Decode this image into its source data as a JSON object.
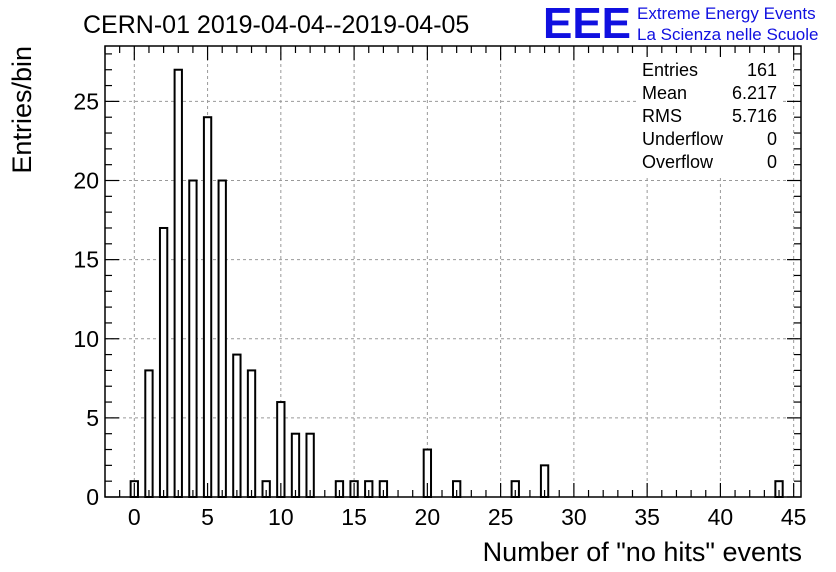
{
  "title": "CERN-01 2019-04-04--2019-04-05",
  "logo": {
    "mark": "EEE",
    "line1": "Extreme Energy Events",
    "line2": "La Scienza nelle Scuole",
    "color": "#1010e0"
  },
  "stats": {
    "rows": [
      {
        "label": "Entries",
        "value": "161"
      },
      {
        "label": "Mean",
        "value": "6.217"
      },
      {
        "label": "RMS",
        "value": "5.716"
      },
      {
        "label": "Underflow",
        "value": "0"
      },
      {
        "label": "Overflow",
        "value": "0"
      }
    ]
  },
  "chart_data": {
    "type": "bar",
    "title": "CERN-01 2019-04-04--2019-04-05",
    "xlabel": "Number of \"no hits\" events",
    "ylabel": "Entries/bin",
    "xlim": [
      -2,
      45.5
    ],
    "ylim": [
      0,
      28.5
    ],
    "bin_width": 0.5,
    "x_ticks": [
      0,
      5,
      10,
      15,
      20,
      25,
      30,
      35,
      40,
      45
    ],
    "y_ticks": [
      0,
      5,
      10,
      15,
      20,
      25
    ],
    "grid": true,
    "bins": [
      {
        "x": 0,
        "y": 1
      },
      {
        "x": 1,
        "y": 8
      },
      {
        "x": 2,
        "y": 17
      },
      {
        "x": 3,
        "y": 27
      },
      {
        "x": 4,
        "y": 20
      },
      {
        "x": 5,
        "y": 24
      },
      {
        "x": 6,
        "y": 20
      },
      {
        "x": 7,
        "y": 9
      },
      {
        "x": 8,
        "y": 8
      },
      {
        "x": 9,
        "y": 1
      },
      {
        "x": 10,
        "y": 6
      },
      {
        "x": 11,
        "y": 4
      },
      {
        "x": 12,
        "y": 4
      },
      {
        "x": 14,
        "y": 1
      },
      {
        "x": 15,
        "y": 1
      },
      {
        "x": 16,
        "y": 1
      },
      {
        "x": 17,
        "y": 1
      },
      {
        "x": 20,
        "y": 3
      },
      {
        "x": 22,
        "y": 1
      },
      {
        "x": 26,
        "y": 1
      },
      {
        "x": 28,
        "y": 2
      },
      {
        "x": 44,
        "y": 1
      }
    ]
  }
}
